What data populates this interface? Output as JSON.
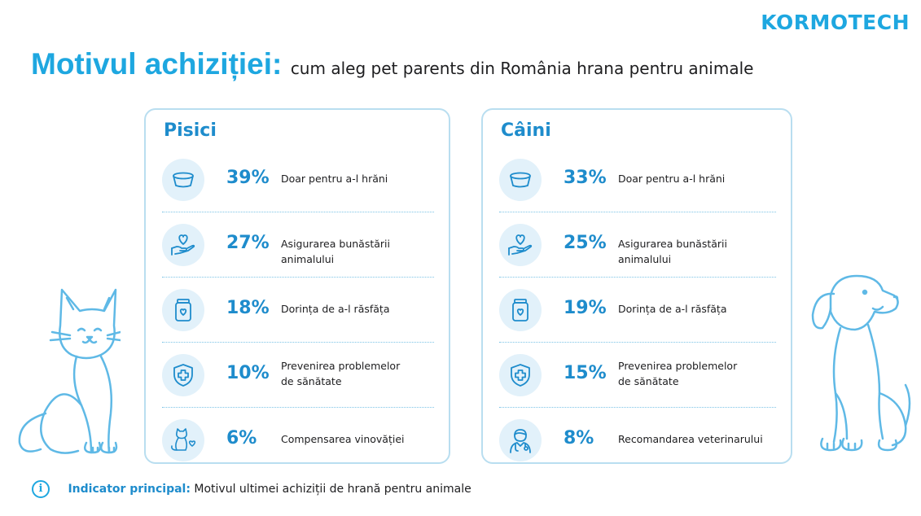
{
  "logo": "KORMOTECH",
  "header": {
    "title": "Motivul achiziției:",
    "subtitle": "cum aleg pet parents din România hrana pentru animale"
  },
  "colors": {
    "accent": "#1ea7e0",
    "accent_dark": "#1e8ccc",
    "icon_bg": "#e2f1fa",
    "border": "#b9def0"
  },
  "chart_data": [
    {
      "type": "table",
      "title": "Pisici",
      "rows": [
        {
          "icon": "food-bowl-icon",
          "value": 39,
          "value_label": "39%",
          "label": [
            "Doar pentru a-l hrăni"
          ]
        },
        {
          "icon": "heart-hand-icon",
          "value": 27,
          "value_label": "27%",
          "label": [
            "Asigurarea bunăstării animalului"
          ]
        },
        {
          "icon": "treat-jar-icon",
          "value": 18,
          "value_label": "18%",
          "label": [
            "Dorința de a-l răsfăța"
          ]
        },
        {
          "icon": "health-shield-icon",
          "value": 10,
          "value_label": "10%",
          "label": [
            "Prevenirea problemelor",
            "de sănătate"
          ]
        },
        {
          "icon": "cat-heart-icon",
          "value": 6,
          "value_label": "6%",
          "label": [
            "Compensarea vinovăției"
          ]
        }
      ]
    },
    {
      "type": "table",
      "title": "Câini",
      "rows": [
        {
          "icon": "food-bowl-icon",
          "value": 33,
          "value_label": "33%",
          "label": [
            "Doar pentru a-l hrăni"
          ]
        },
        {
          "icon": "heart-hand-icon",
          "value": 25,
          "value_label": "25%",
          "label": [
            "Asigurarea bunăstării animalului"
          ]
        },
        {
          "icon": "treat-jar-icon",
          "value": 19,
          "value_label": "19%",
          "label": [
            "Dorința de a-l răsfăța"
          ]
        },
        {
          "icon": "health-shield-icon",
          "value": 15,
          "value_label": "15%",
          "label": [
            "Prevenirea problemelor",
            "de sănătate"
          ]
        },
        {
          "icon": "veterinarian-icon",
          "value": 8,
          "value_label": "8%",
          "label": [
            "Recomandarea veterinarului"
          ]
        }
      ]
    }
  ],
  "footer": {
    "icon": "info-icon",
    "info_glyph": "i",
    "strong": "Indicator principal:",
    "text": "Motivul ultimei achiziții de hrană pentru animale"
  }
}
